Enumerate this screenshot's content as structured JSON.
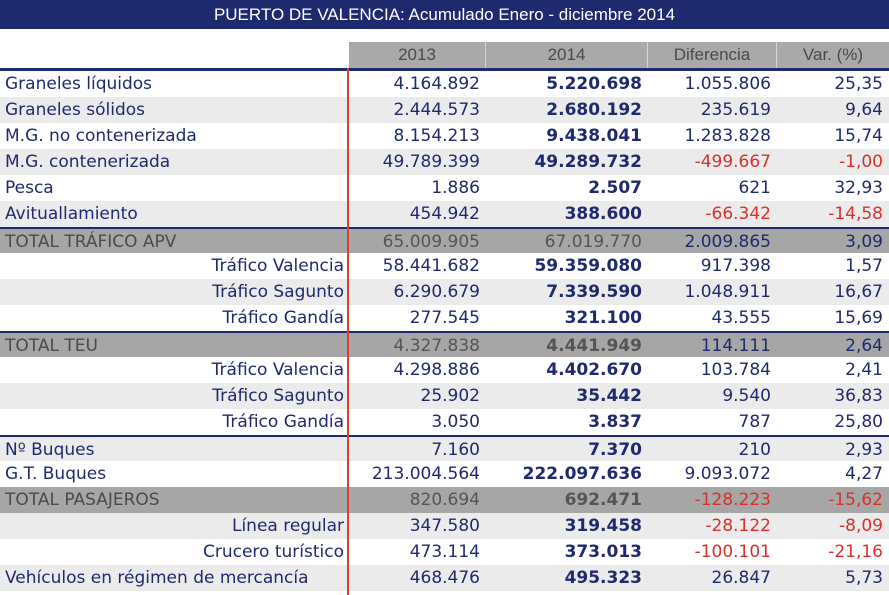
{
  "title": "PUERTO DE VALENCIA: Acumulado Enero - diciembre 2014",
  "columns": [
    "2013",
    "2014",
    "Diferencia",
    "Var. (%)"
  ],
  "colors": {
    "navy": "#1f2a6e",
    "negative": "#d9302a",
    "header_bg": "#a9a9a9",
    "alt_row_bg": "#ebebeb",
    "total_row_bg": "#a6a6a6",
    "divider_red": "#d9432f"
  },
  "rows": [
    {
      "label": "Graneles líquidos",
      "v2013": "4.164.892",
      "v2014": "5.220.698",
      "diff": "1.055.806",
      "var": "25,35"
    },
    {
      "label": "Graneles sólidos",
      "v2013": "2.444.573",
      "v2014": "2.680.192",
      "diff": "235.619",
      "var": "9,64"
    },
    {
      "label": "M.G. no contenerizada",
      "v2013": "8.154.213",
      "v2014": "9.438.041",
      "diff": "1.283.828",
      "var": "15,74"
    },
    {
      "label": "M.G. contenerizada",
      "v2013": "49.789.399",
      "v2014": "49.289.732",
      "diff": "-499.667",
      "var": "-1,00"
    },
    {
      "label": "Pesca",
      "v2013": "1.886",
      "v2014": "2.507",
      "diff": "621",
      "var": "32,93"
    },
    {
      "label": "Avituallamiento",
      "v2013": "454.942",
      "v2014": "388.600",
      "diff": "-66.342",
      "var": "-14,58"
    },
    {
      "label": "TOTAL TRÁFICO APV",
      "v2013": "65.009.905",
      "v2014": "67.019.770",
      "diff": "2.009.865",
      "var": "3,09"
    },
    {
      "label": "Tráfico Valencia",
      "v2013": "58.441.682",
      "v2014": "59.359.080",
      "diff": "917.398",
      "var": "1,57"
    },
    {
      "label": "Tráfico Sagunto",
      "v2013": "6.290.679",
      "v2014": "7.339.590",
      "diff": "1.048.911",
      "var": "16,67"
    },
    {
      "label": "Tráfico Gandía",
      "v2013": "277.545",
      "v2014": "321.100",
      "diff": "43.555",
      "var": "15,69"
    },
    {
      "label": "TOTAL TEU",
      "v2013": "4.327.838",
      "v2014": "4.441.949",
      "diff": "114.111",
      "var": "2,64"
    },
    {
      "label": "Tráfico Valencia",
      "v2013": "4.298.886",
      "v2014": "4.402.670",
      "diff": "103.784",
      "var": "2,41"
    },
    {
      "label": "Tráfico Sagunto",
      "v2013": "25.902",
      "v2014": "35.442",
      "diff": "9.540",
      "var": "36,83"
    },
    {
      "label": "Tráfico Gandía",
      "v2013": "3.050",
      "v2014": "3.837",
      "diff": "787",
      "var": "25,80"
    },
    {
      "label": "Nº Buques",
      "v2013": "7.160",
      "v2014": "7.370",
      "diff": "210",
      "var": "2,93"
    },
    {
      "label": "G.T. Buques",
      "v2013": "213.004.564",
      "v2014": "222.097.636",
      "diff": "9.093.072",
      "var": "4,27"
    },
    {
      "label": "TOTAL PASAJEROS",
      "v2013": "820.694",
      "v2014": "692.471",
      "diff": "-128.223",
      "var": "-15,62"
    },
    {
      "label": "Línea regular",
      "v2013": "347.580",
      "v2014": "319.458",
      "diff": "-28.122",
      "var": "-8,09"
    },
    {
      "label": "Crucero turístico",
      "v2013": "473.114",
      "v2014": "373.013",
      "diff": "-100.101",
      "var": "-21,16"
    },
    {
      "label": "Vehículos en régimen de mercancía",
      "v2013": "468.476",
      "v2014": "495.323",
      "diff": "26.847",
      "var": "5,73"
    }
  ]
}
